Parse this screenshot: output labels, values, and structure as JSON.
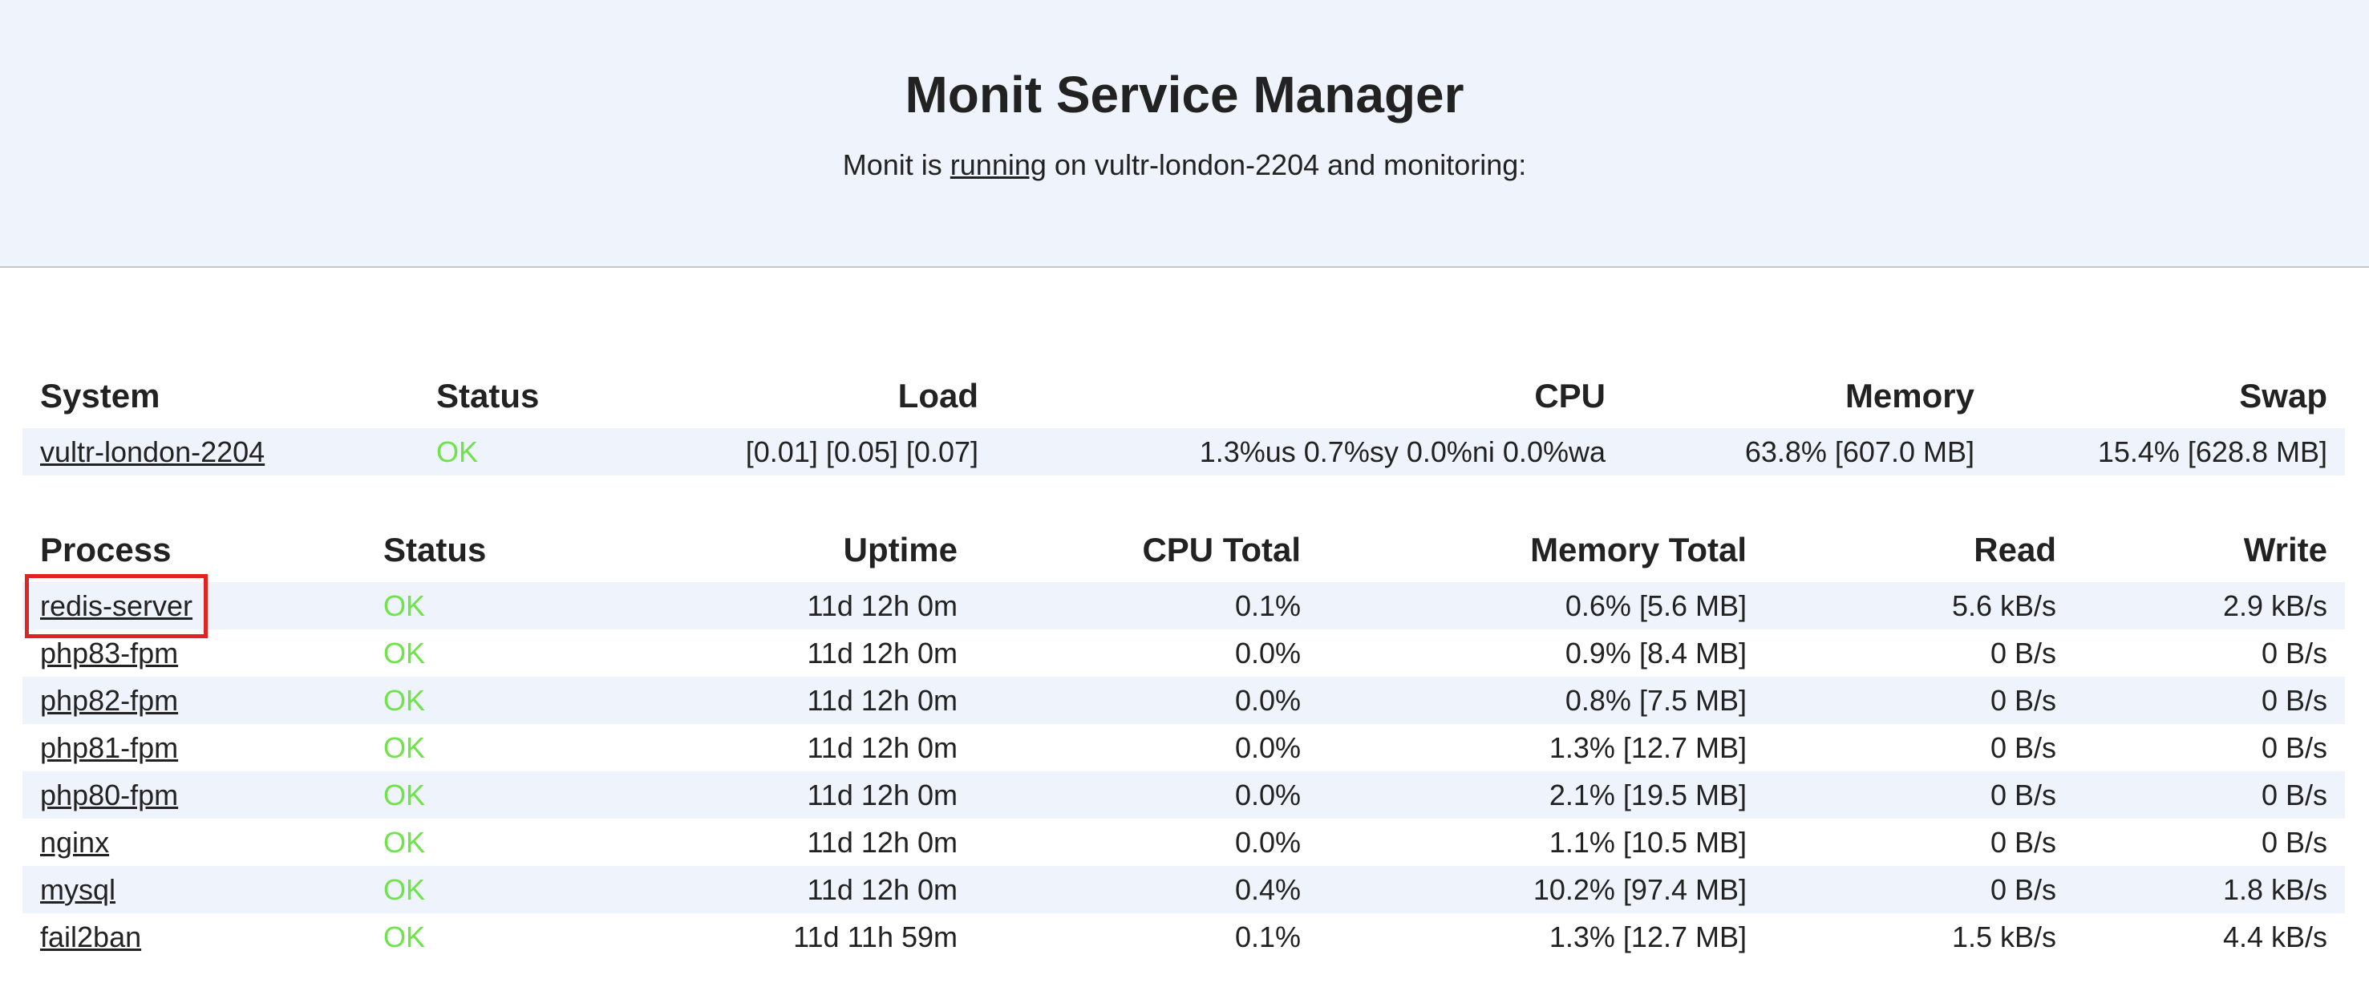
{
  "header": {
    "title": "Monit Service Manager",
    "subtitle_prefix": "Monit is",
    "subtitle_link": "running",
    "subtitle_suffix": "on vultr-london-2204 and monitoring:"
  },
  "colors": {
    "ok": "#6ee34a",
    "header_bg": "#eef3fc",
    "stripe": "#eef3fc",
    "highlight": "#e02424"
  },
  "system_table": {
    "headers": [
      "System",
      "Status",
      "Load",
      "CPU",
      "Memory",
      "Swap"
    ],
    "rows": [
      {
        "name": "vultr-london-2204",
        "status": "OK",
        "load": "[0.01] [0.05] [0.07]",
        "cpu": "1.3%us 0.7%sy 0.0%ni 0.0%wa",
        "memory": "63.8% [607.0 MB]",
        "swap": "15.4% [628.8 MB]"
      }
    ]
  },
  "process_table": {
    "headers": [
      "Process",
      "Status",
      "Uptime",
      "CPU Total",
      "Memory Total",
      "Read",
      "Write"
    ],
    "rows": [
      {
        "name": "redis-server",
        "status": "OK",
        "uptime": "11d 12h 0m",
        "cpu": "0.1%",
        "memory": "0.6% [5.6 MB]",
        "read": "5.6 kB/s",
        "write": "2.9 kB/s"
      },
      {
        "name": "php83-fpm",
        "status": "OK",
        "uptime": "11d 12h 0m",
        "cpu": "0.0%",
        "memory": "0.9% [8.4 MB]",
        "read": "0 B/s",
        "write": "0 B/s"
      },
      {
        "name": "php82-fpm",
        "status": "OK",
        "uptime": "11d 12h 0m",
        "cpu": "0.0%",
        "memory": "0.8% [7.5 MB]",
        "read": "0 B/s",
        "write": "0 B/s"
      },
      {
        "name": "php81-fpm",
        "status": "OK",
        "uptime": "11d 12h 0m",
        "cpu": "0.0%",
        "memory": "1.3% [12.7 MB]",
        "read": "0 B/s",
        "write": "0 B/s"
      },
      {
        "name": "php80-fpm",
        "status": "OK",
        "uptime": "11d 12h 0m",
        "cpu": "0.0%",
        "memory": "2.1% [19.5 MB]",
        "read": "0 B/s",
        "write": "0 B/s"
      },
      {
        "name": "nginx",
        "status": "OK",
        "uptime": "11d 12h 0m",
        "cpu": "0.0%",
        "memory": "1.1% [10.5 MB]",
        "read": "0 B/s",
        "write": "0 B/s"
      },
      {
        "name": "mysql",
        "status": "OK",
        "uptime": "11d 12h 0m",
        "cpu": "0.4%",
        "memory": "10.2% [97.4 MB]",
        "read": "0 B/s",
        "write": "1.8 kB/s"
      },
      {
        "name": "fail2ban",
        "status": "OK",
        "uptime": "11d 11h 59m",
        "cpu": "0.1%",
        "memory": "1.3% [12.7 MB]",
        "read": "1.5 kB/s",
        "write": "4.4 kB/s"
      }
    ]
  }
}
